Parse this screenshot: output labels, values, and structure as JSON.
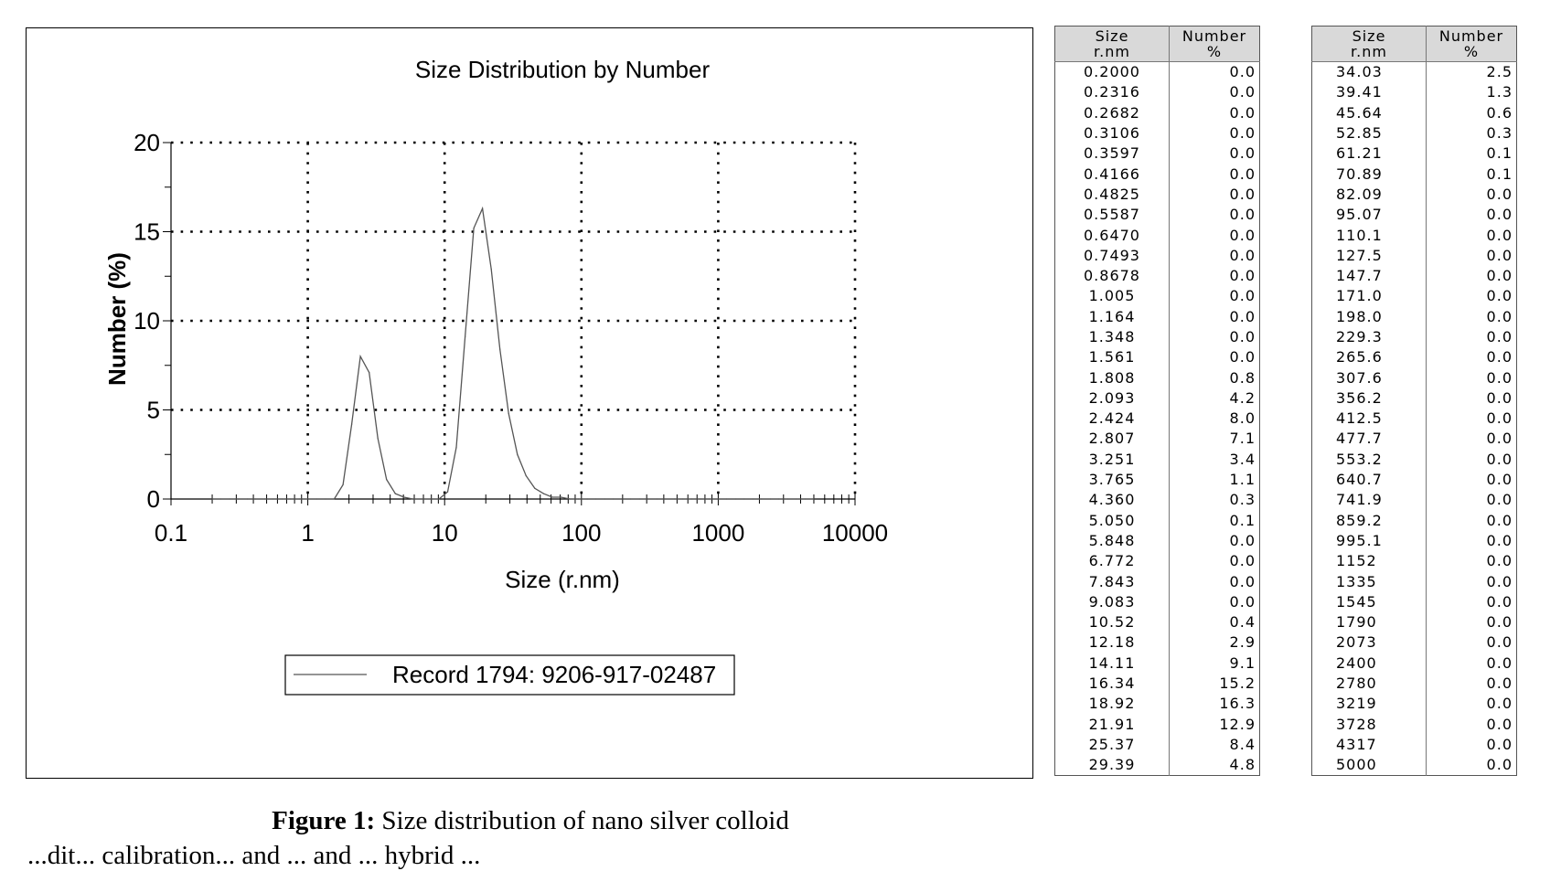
{
  "chart_data": {
    "type": "line",
    "title": "Size Distribution by Number",
    "xlabel": "Size (r.nm)",
    "ylabel": "Number (%)",
    "xscale": "log",
    "xlim": [
      0.1,
      10000
    ],
    "ylim": [
      0,
      20
    ],
    "x_ticks": [
      "0.1",
      "1",
      "10",
      "100",
      "1000",
      "10000"
    ],
    "y_ticks": [
      "0",
      "5",
      "10",
      "15",
      "20"
    ],
    "grid": true,
    "legend_position": "bottom",
    "series": [
      {
        "name": "Record 1794: 9206-917-02487",
        "color": "#555555",
        "x": [
          0.2,
          0.2316,
          0.2682,
          0.3106,
          0.3597,
          0.4166,
          0.4825,
          0.5587,
          0.647,
          0.7493,
          0.8678,
          1.005,
          1.164,
          1.348,
          1.561,
          1.808,
          2.093,
          2.424,
          2.807,
          3.251,
          3.765,
          4.36,
          5.05,
          5.848,
          6.772,
          7.843,
          9.083,
          10.52,
          12.18,
          14.11,
          16.34,
          18.92,
          21.91,
          25.37,
          29.39,
          34.03,
          39.41,
          45.64,
          52.85,
          61.21,
          70.89,
          82.09,
          95.07,
          110.1,
          127.5,
          147.7,
          171.0,
          198.0,
          229.3,
          265.6,
          307.6,
          356.2,
          412.5,
          477.7,
          553.2,
          640.7,
          741.9,
          859.2,
          995.1,
          1152,
          1335,
          1545,
          1790,
          2073,
          2400,
          2780,
          3219,
          3728,
          4317,
          5000
        ],
        "y": [
          0,
          0,
          0,
          0,
          0,
          0,
          0,
          0,
          0,
          0,
          0,
          0,
          0,
          0,
          0,
          0.8,
          4.2,
          8.0,
          7.1,
          3.4,
          1.1,
          0.3,
          0.1,
          0,
          0,
          0,
          0,
          0.4,
          2.9,
          9.1,
          15.2,
          16.3,
          12.9,
          8.4,
          4.8,
          2.5,
          1.3,
          0.6,
          0.3,
          0.1,
          0.1,
          0,
          0,
          0,
          0,
          0,
          0,
          0,
          0,
          0,
          0,
          0,
          0,
          0,
          0,
          0,
          0,
          0,
          0,
          0,
          0,
          0,
          0,
          0,
          0,
          0,
          0,
          0,
          0,
          0
        ]
      }
    ]
  },
  "table": {
    "headers": {
      "size_line1": "Size",
      "size_line2": "r.nm",
      "number_line1": "Number",
      "number_line2": "%"
    },
    "left_rows": [
      [
        "0.2000",
        "0.0"
      ],
      [
        "0.2316",
        "0.0"
      ],
      [
        "0.2682",
        "0.0"
      ],
      [
        "0.3106",
        "0.0"
      ],
      [
        "0.3597",
        "0.0"
      ],
      [
        "0.4166",
        "0.0"
      ],
      [
        "0.4825",
        "0.0"
      ],
      [
        "0.5587",
        "0.0"
      ],
      [
        "0.6470",
        "0.0"
      ],
      [
        "0.7493",
        "0.0"
      ],
      [
        "0.8678",
        "0.0"
      ],
      [
        "1.005",
        "0.0"
      ],
      [
        "1.164",
        "0.0"
      ],
      [
        "1.348",
        "0.0"
      ],
      [
        "1.561",
        "0.0"
      ],
      [
        "1.808",
        "0.8"
      ],
      [
        "2.093",
        "4.2"
      ],
      [
        "2.424",
        "8.0"
      ],
      [
        "2.807",
        "7.1"
      ],
      [
        "3.251",
        "3.4"
      ],
      [
        "3.765",
        "1.1"
      ],
      [
        "4.360",
        "0.3"
      ],
      [
        "5.050",
        "0.1"
      ],
      [
        "5.848",
        "0.0"
      ],
      [
        "6.772",
        "0.0"
      ],
      [
        "7.843",
        "0.0"
      ],
      [
        "9.083",
        "0.0"
      ],
      [
        "10.52",
        "0.4"
      ],
      [
        "12.18",
        "2.9"
      ],
      [
        "14.11",
        "9.1"
      ],
      [
        "16.34",
        "15.2"
      ],
      [
        "18.92",
        "16.3"
      ],
      [
        "21.91",
        "12.9"
      ],
      [
        "25.37",
        "8.4"
      ],
      [
        "29.39",
        "4.8"
      ]
    ],
    "right_rows": [
      [
        "34.03",
        "2.5"
      ],
      [
        "39.41",
        "1.3"
      ],
      [
        "45.64",
        "0.6"
      ],
      [
        "52.85",
        "0.3"
      ],
      [
        "61.21",
        "0.1"
      ],
      [
        "70.89",
        "0.1"
      ],
      [
        "82.09",
        "0.0"
      ],
      [
        "95.07",
        "0.0"
      ],
      [
        "110.1",
        "0.0"
      ],
      [
        "127.5",
        "0.0"
      ],
      [
        "147.7",
        "0.0"
      ],
      [
        "171.0",
        "0.0"
      ],
      [
        "198.0",
        "0.0"
      ],
      [
        "229.3",
        "0.0"
      ],
      [
        "265.6",
        "0.0"
      ],
      [
        "307.6",
        "0.0"
      ],
      [
        "356.2",
        "0.0"
      ],
      [
        "412.5",
        "0.0"
      ],
      [
        "477.7",
        "0.0"
      ],
      [
        "553.2",
        "0.0"
      ],
      [
        "640.7",
        "0.0"
      ],
      [
        "741.9",
        "0.0"
      ],
      [
        "859.2",
        "0.0"
      ],
      [
        "995.1",
        "0.0"
      ],
      [
        "1152",
        "0.0"
      ],
      [
        "1335",
        "0.0"
      ],
      [
        "1545",
        "0.0"
      ],
      [
        "1790",
        "0.0"
      ],
      [
        "2073",
        "0.0"
      ],
      [
        "2400",
        "0.0"
      ],
      [
        "2780",
        "0.0"
      ],
      [
        "3219",
        "0.0"
      ],
      [
        "3728",
        "0.0"
      ],
      [
        "4317",
        "0.0"
      ],
      [
        "5000",
        "0.0"
      ]
    ]
  },
  "caption": {
    "label": "Figure 1:",
    "text": " Size distribution of nano silver colloid"
  },
  "clipped_line": "...dit... calibration... and ... and ... hybrid ..."
}
